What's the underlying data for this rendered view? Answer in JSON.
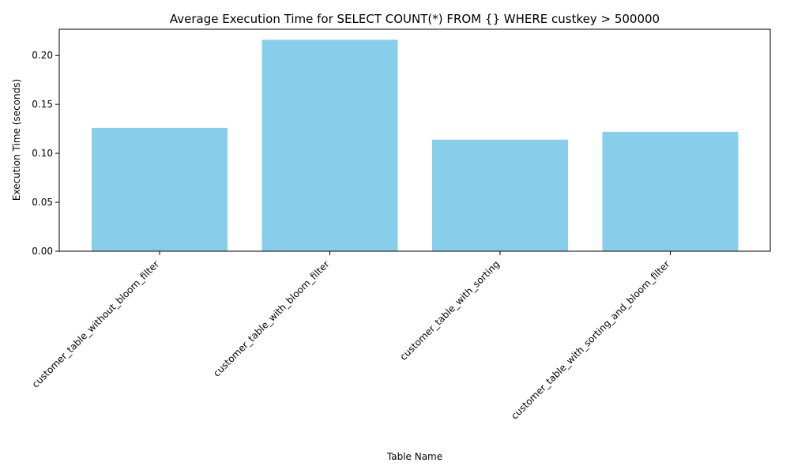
{
  "chart_data": {
    "type": "bar",
    "title": "Average Execution Time for SELECT COUNT(*) FROM {} WHERE custkey > 500000",
    "xlabel": "Table Name",
    "ylabel": "Execution Time (seconds)",
    "categories": [
      "customer_table_without_bloom_filter",
      "customer_table_with_bloom_filter",
      "customer_table_with_sorting",
      "customer_table_with_sorting_and_bloom_filter"
    ],
    "values": [
      0.126,
      0.216,
      0.114,
      0.122
    ],
    "ylim": [
      0,
      0.2268
    ],
    "yticks": [
      "0.00",
      "0.05",
      "0.10",
      "0.15",
      "0.20"
    ],
    "bar_color": "#87CEEB",
    "grid": false,
    "legend": "none"
  }
}
